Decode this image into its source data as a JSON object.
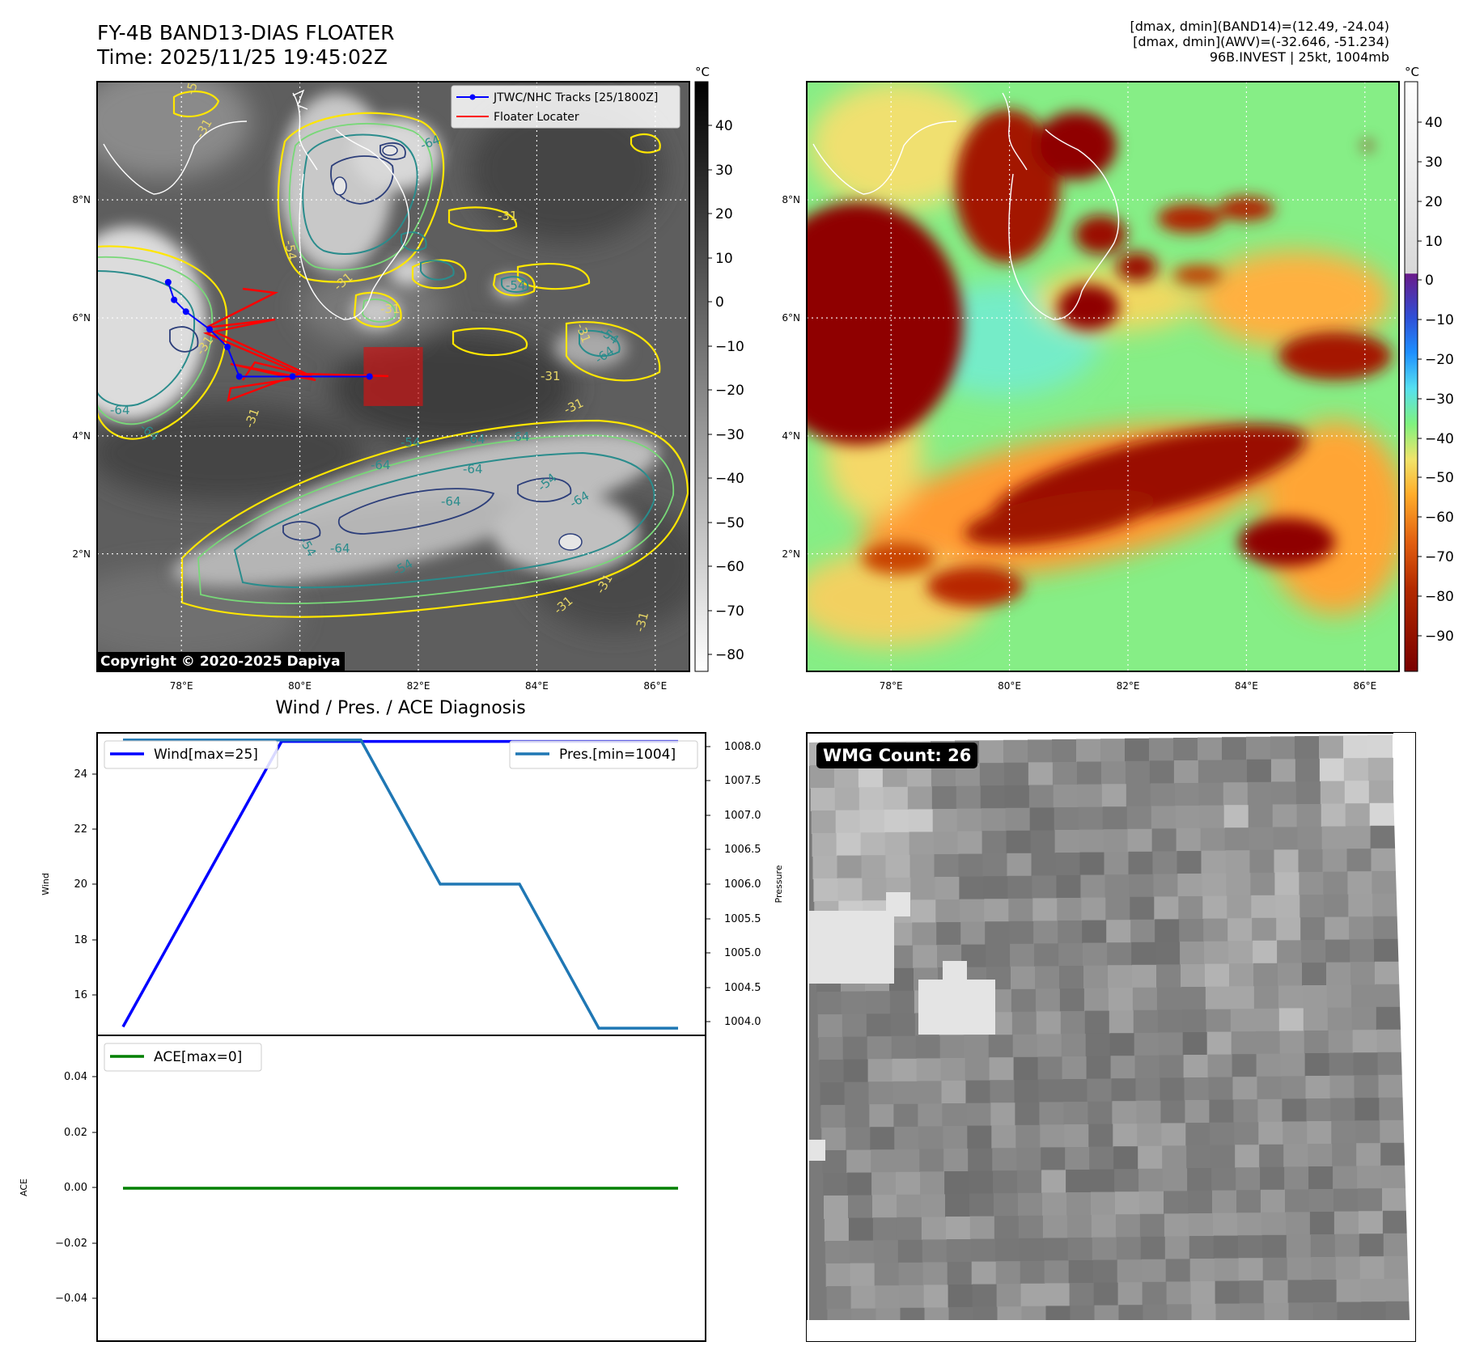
{
  "header": {
    "title_line1": "FY-4B BAND13-DIAS FLOATER",
    "title_line2": "Time: 2025/11/25 19:45:02Z",
    "info_line1": "[dmax, dmin](BAND14)=(12.49, -24.04)",
    "info_line2": "[dmax, dmin](AWV)=(-32.646, -51.234)",
    "info_line3": "96B.INVEST | 25kt, 1004mb"
  },
  "copyright": "Copyright © 2020-2025 Dapiya",
  "wmg_label": "WMG Count: 26",
  "colors": {
    "gray_cbar_top": "#000000",
    "gray_cbar_bottom": "#ffffff",
    "jtwc_track": "#0000ff",
    "floater": "#ff0000",
    "contour_yellow": "#ffe600",
    "contour_green": "#78d878",
    "contour_teal": "#2a8c8c",
    "contour_navy": "#2c3e7a",
    "wind_line": "#0000ff",
    "pressure_line": "#1f77b4",
    "ace_line": "#008000"
  },
  "chart_data": [
    {
      "type": "heatmap",
      "panel": "band13-grayscale",
      "xticks": [
        "78°E",
        "80°E",
        "82°E",
        "84°E",
        "86°E"
      ],
      "yticks": [
        "8°N",
        "6°N",
        "4°N",
        "2°N"
      ],
      "xlim": [
        76.7,
        86.7
      ],
      "ylim": [
        0.0,
        10.0
      ],
      "grid": true,
      "colorbar": {
        "unit": "°C",
        "ticks": [
          "40",
          "30",
          "20",
          "10",
          "0",
          "−10",
          "−20",
          "−30",
          "−40",
          "−50",
          "−60",
          "−70",
          "−80"
        ]
      },
      "contour_labels": [
        "-31",
        "-54",
        "-64"
      ],
      "legend": {
        "placement": "top-right",
        "entries": [
          "JTWC/NHC Tracks [25/1800Z]",
          "Floater Locater"
        ]
      },
      "track_points": [
        {
          "lon": 77.9,
          "lat": 6.6
        },
        {
          "lon": 78.0,
          "lat": 6.3
        },
        {
          "lon": 78.2,
          "lat": 6.1
        },
        {
          "lon": 78.6,
          "lat": 5.8
        },
        {
          "lon": 78.9,
          "lat": 5.5
        },
        {
          "lon": 79.1,
          "lat": 5.0
        },
        {
          "lon": 80.0,
          "lat": 5.0
        },
        {
          "lon": 81.3,
          "lat": 5.0
        }
      ],
      "floater_box": {
        "lon": [
          81.2,
          82.2
        ],
        "lat": [
          4.5,
          5.5
        ]
      }
    },
    {
      "type": "heatmap",
      "panel": "awv-color",
      "xticks": [
        "78°E",
        "80°E",
        "82°E",
        "84°E",
        "86°E"
      ],
      "yticks": [
        "8°N",
        "6°N",
        "4°N",
        "2°N"
      ],
      "xlim": [
        76.7,
        86.7
      ],
      "ylim": [
        0.0,
        10.0
      ],
      "grid": true,
      "colorbar": {
        "unit": "°C",
        "ticks": [
          "40",
          "30",
          "20",
          "10",
          "0",
          "−10",
          "−20",
          "−30",
          "−40",
          "−50",
          "−60",
          "−70",
          "−80",
          "−90"
        ]
      }
    },
    {
      "type": "line",
      "panel": "wind-pressure",
      "title": "Wind / Pres. / ACE Diagnosis",
      "x": [
        0,
        1,
        2,
        3,
        4,
        5,
        6,
        7
      ],
      "series": [
        {
          "name": "Wind[max=25]",
          "axis": "left",
          "values": [
            15,
            20,
            25,
            25,
            25,
            25,
            25,
            25
          ]
        },
        {
          "name": "Pres.[min=1004]",
          "axis": "right",
          "values": [
            1008,
            1008,
            1008,
            1008,
            1006,
            1006,
            1004,
            1004
          ]
        }
      ],
      "ylabel": "Wind",
      "y2label": "Pressure",
      "ylim": [
        14.7,
        25.3
      ],
      "y2lim": [
        1003.9,
        1008.1
      ],
      "yticks": [
        "16",
        "18",
        "20",
        "22",
        "24"
      ],
      "y2ticks": [
        "1008.0",
        "1007.5",
        "1007.0",
        "1006.5",
        "1006.0",
        "1005.5",
        "1005.0",
        "1004.5",
        "1004.0"
      ]
    },
    {
      "type": "line",
      "panel": "ace",
      "x": [
        0,
        7
      ],
      "series": [
        {
          "name": "ACE[max=0]",
          "values": [
            0,
            0
          ]
        }
      ],
      "ylabel": "ACE",
      "ylim": [
        -0.055,
        0.055
      ],
      "yticks": [
        "0.04",
        "0.02",
        "0.00",
        "−0.02",
        "−0.04"
      ]
    },
    {
      "type": "heatmap",
      "panel": "wmg-grid"
    }
  ]
}
